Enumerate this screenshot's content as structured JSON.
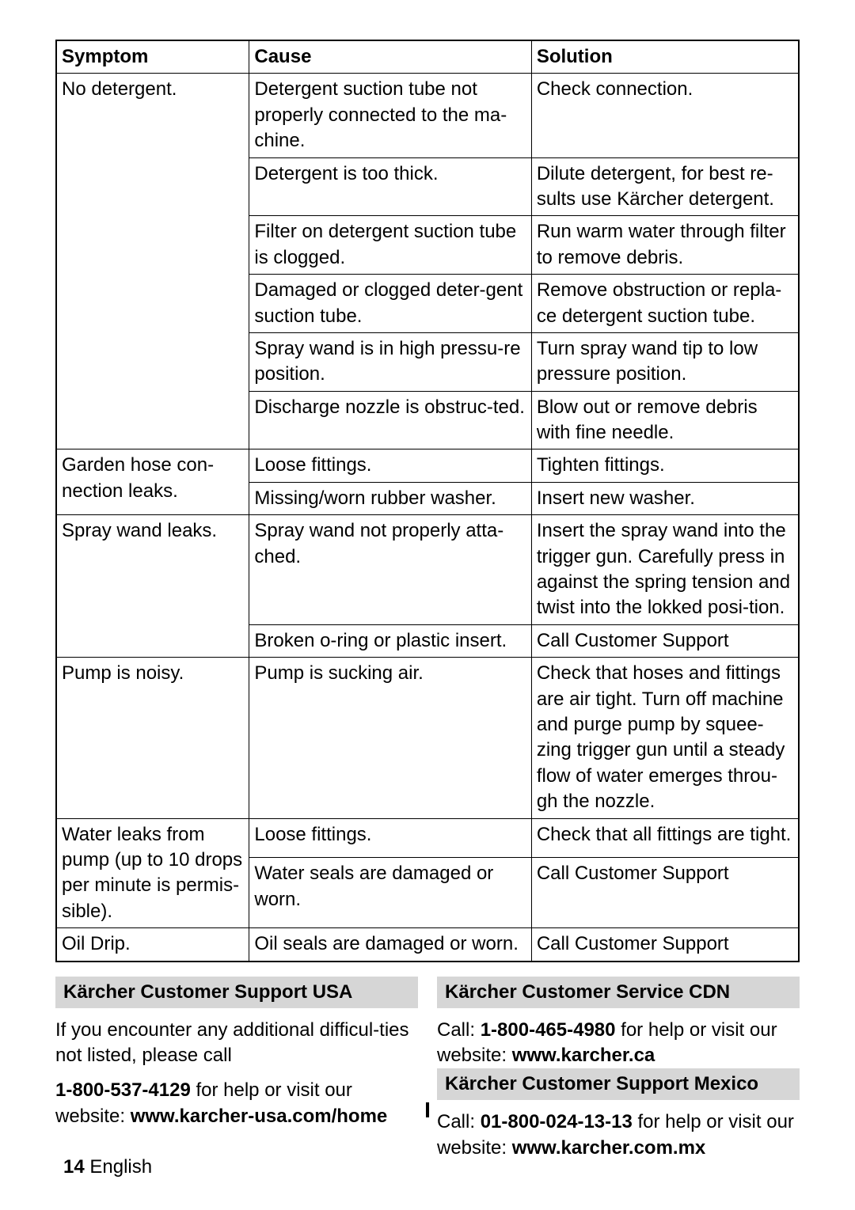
{
  "table": {
    "headers": {
      "symptom": "Symptom",
      "cause": "Cause",
      "solution": "Solution"
    },
    "rows": [
      {
        "symptom": "No detergent.",
        "symptom_rowspan": 6,
        "cause": "Detergent suction tube not properly connected to the ma-chine.",
        "solution": "Check connection."
      },
      {
        "cause": "Detergent is too thick.",
        "solution": "Dilute detergent, for best re-sults use Kärcher detergent."
      },
      {
        "cause": "Filter on detergent suction tube is clogged.",
        "solution": "Run warm water through filter to remove debris."
      },
      {
        "cause": "Damaged or clogged deter-gent suction tube.",
        "solution": "Remove obstruction or repla-ce detergent suction tube."
      },
      {
        "cause": "Spray wand is in high pressu-re position.",
        "solution": "Turn spray wand tip to low pressure position."
      },
      {
        "cause": "Discharge nozzle is obstruc-ted.",
        "solution": "Blow out or remove debris with fine needle."
      },
      {
        "symptom": "Garden hose con-nection leaks.",
        "symptom_rowspan": 2,
        "cause": "Loose fittings.",
        "solution": "Tighten fittings."
      },
      {
        "cause": "Missing/worn rubber washer.",
        "solution": "Insert new washer."
      },
      {
        "symptom": "Spray wand leaks.",
        "symptom_rowspan": 2,
        "cause": "Spray wand not properly atta-ched.",
        "solution": "Insert the spray wand into the trigger gun. Carefully press in against the spring tension and twist into the lokked posi-tion."
      },
      {
        "cause": "Broken o-ring or plastic insert.",
        "solution": "Call Customer Support"
      },
      {
        "symptom": "Pump is noisy.",
        "symptom_rowspan": 1,
        "cause": "Pump is sucking air.",
        "solution": "Check that hoses and fittings are air tight. Turn off machine and purge pump by squee-zing trigger gun until a steady flow of water emerges throu-gh the nozzle."
      },
      {
        "symptom": "Water leaks from pump (up to 10 drops per minute is permis-sible).",
        "symptom_rowspan": 2,
        "cause": "Loose fittings.",
        "solution": "Check that all fittings are tight."
      },
      {
        "cause": "Water seals are damaged or worn.",
        "solution": "Call Customer Support"
      },
      {
        "symptom": "Oil Drip.",
        "symptom_rowspan": 1,
        "cause": "Oil seals are damaged or worn.",
        "solution": "Call Customer Support"
      }
    ]
  },
  "sections": {
    "usa": {
      "title": "Kärcher Customer Support USA",
      "body_pre": "If you encounter any additional difficul-ties not listed, please call",
      "phone": "1-800-537-4129",
      "mid": " for help or visit our website: ",
      "site": "www.karcher-usa.com/home"
    },
    "cdn": {
      "title": "Kärcher Customer Service CDN",
      "body_pre": "Call: ",
      "phone": "1-800-465-4980",
      "mid": " for help or visit our website: ",
      "site": "www.karcher.ca"
    },
    "mex": {
      "title": "Kärcher Customer Support Mexico",
      "body_pre": "Call: ",
      "phone": "01-800-024-13-13",
      "mid": " for help or visit our website: ",
      "site": "www.karcher.com.mx"
    }
  },
  "footer": {
    "page": "14",
    "lang": "English"
  },
  "mystery": "I"
}
